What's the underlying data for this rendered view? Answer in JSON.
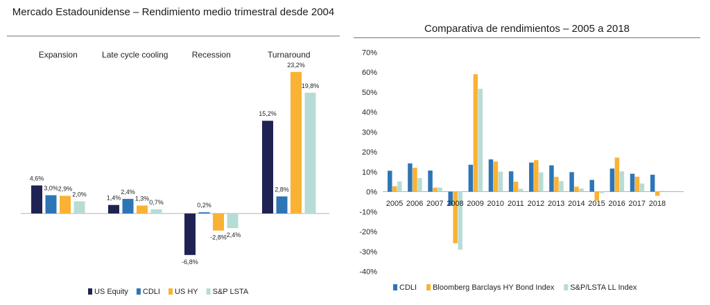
{
  "colors": {
    "us_equity": "#1f2354",
    "cdli": "#2e75b6",
    "us_hy": "#f9b233",
    "sp_lsta": "#b7dcd6",
    "rule": "#6b7280",
    "axis": "#b0b0b0"
  },
  "chart_data": [
    {
      "type": "bar",
      "title": "Mercado Estadounidense – Rendimiento medio trimestral desde 2004",
      "categories": [
        "Expansion",
        "Late cycle cooling",
        "Recession",
        "Turnaround"
      ],
      "series": [
        {
          "name": "US Equity",
          "values": [
            4.6,
            1.4,
            -6.8,
            15.2
          ],
          "labels": [
            "4,6%",
            "1,4%",
            "-6,8%",
            "15,2%"
          ]
        },
        {
          "name": "CDLI",
          "values": [
            3.0,
            2.4,
            0.2,
            2.8
          ],
          "labels": [
            "3,0%",
            "2,4%",
            "0,2%",
            "2,8%"
          ]
        },
        {
          "name": "US HY",
          "values": [
            2.9,
            1.3,
            -2.8,
            23.2
          ],
          "labels": [
            "2,9%",
            "1,3%",
            "-2,8%",
            "23,2%"
          ]
        },
        {
          "name": "S&P LSTA",
          "values": [
            2.0,
            0.7,
            -2.4,
            19.8
          ],
          "labels": [
            "2,0%",
            "0,7%",
            "-2,4%",
            "19,8%"
          ]
        }
      ],
      "legend_position": "bottom",
      "grid": false
    },
    {
      "type": "bar",
      "title": "Comparativa de rendimientos – 2005 a 2018",
      "categories": [
        "2005",
        "2006",
        "2007",
        "2008",
        "2009",
        "2010",
        "2011",
        "2012",
        "2013",
        "2014",
        "2015",
        "2016",
        "2017",
        "2018"
      ],
      "series": [
        {
          "name": "CDLI",
          "values": [
            10.5,
            14.2,
            10.6,
            -7.0,
            13.5,
            16.2,
            10.2,
            14.6,
            13.2,
            9.8,
            5.9,
            11.6,
            9.0,
            8.5
          ]
        },
        {
          "name": "Bloomberg Barclays HY Bond Index",
          "values": [
            2.7,
            12.0,
            2.0,
            -25.9,
            58.9,
            15.1,
            5.0,
            15.8,
            7.4,
            2.5,
            -4.5,
            17.1,
            7.5,
            -2.1
          ]
        },
        {
          "name": "S&P/LSTA LL Index",
          "values": [
            5.1,
            6.8,
            2.1,
            -29.1,
            51.6,
            10.1,
            1.5,
            9.7,
            5.3,
            1.6,
            -0.7,
            10.2,
            4.1,
            0.4
          ]
        }
      ],
      "yticks": [
        "70%",
        "60%",
        "50%",
        "40%",
        "30%",
        "20%",
        "10%",
        "0%",
        "-10%",
        "-20%",
        "-30%",
        "-40%"
      ],
      "ylim": [
        -40,
        70
      ],
      "legend_position": "bottom",
      "grid": false
    }
  ]
}
